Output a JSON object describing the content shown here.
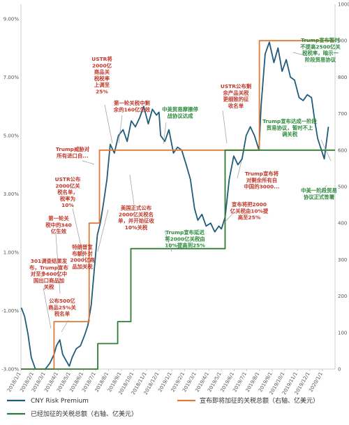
{
  "chart_data": {
    "type": "line",
    "title": "",
    "xlabel": "",
    "ylabel_left": "",
    "ylabel_right": "",
    "x_tick_labels": [
      "2018/1/1",
      "2018/2/1",
      "2018/3/1",
      "2018/4/1",
      "2018/5/1",
      "2018/6/1",
      "2018/7/1",
      "2018/8/1",
      "2018/9/1",
      "2018/10/1",
      "2018/11/1",
      "2018/12/1",
      "2019/1/1",
      "2019/2/1",
      "2019/3/1",
      "2019/4/1",
      "2019/5/1",
      "2019/6/1",
      "2019/7/1",
      "2019/8/1",
      "2019/9/1",
      "2019/10/1",
      "2019/11/1",
      "2019/12/1",
      "2020/1/1"
    ],
    "x_range": [
      "2018/1/1",
      "2020/1/31"
    ],
    "y_left": {
      "ticks": [
        "-3.00%",
        "-1.00%",
        "1.00%",
        "3.00%",
        "5.00%",
        "7.00%",
        "9.00%"
      ],
      "range": [
        -3.0,
        9.5
      ],
      "unit": "%"
    },
    "y_right": {
      "ticks": [
        "0",
        "100",
        "200",
        "300",
        "400",
        "500",
        "600",
        "700",
        "800",
        "900",
        "1000"
      ],
      "range": [
        0,
        1000
      ],
      "unit": "亿美元"
    },
    "grid": false,
    "legend_position": "bottom",
    "colors": {
      "premium": "#1f5b7a",
      "announced": "#e07a3a",
      "imposed": "#2e7d32",
      "annotation_red": "#c0392b",
      "annotation_green": "#2e8b3d",
      "axis": "#cccccc"
    },
    "series": [
      {
        "name": "CNY Risk Premium",
        "axis": "left",
        "points": [
          [
            "2018/1/2",
            -0.9
          ],
          [
            "2018/1/10",
            -1.2
          ],
          [
            "2018/1/18",
            -1.8
          ],
          [
            "2018/1/26",
            -2.6
          ],
          [
            "2018/2/5",
            -3.0
          ],
          [
            "2018/2/20",
            -3.0
          ],
          [
            "2018/3/1",
            -3.0
          ],
          [
            "2018/3/12",
            -2.8
          ],
          [
            "2018/3/22",
            -2.5
          ],
          [
            "2018/3/28",
            -2.2
          ],
          [
            "2018/4/5",
            -2.0
          ],
          [
            "2018/4/12",
            -2.5
          ],
          [
            "2018/4/20",
            -2.7
          ],
          [
            "2018/4/28",
            -2.9
          ],
          [
            "2018/5/5",
            -2.6
          ],
          [
            "2018/5/15",
            -2.3
          ],
          [
            "2018/5/25",
            -2.2
          ],
          [
            "2018/6/5",
            -1.8
          ],
          [
            "2018/6/12",
            -1.5
          ],
          [
            "2018/6/20",
            -0.8
          ],
          [
            "2018/6/28",
            0.5
          ],
          [
            "2018/7/5",
            1.6
          ],
          [
            "2018/7/12",
            2.0
          ],
          [
            "2018/7/20",
            2.7
          ],
          [
            "2018/7/28",
            3.5
          ],
          [
            "2018/8/5",
            4.7
          ],
          [
            "2018/8/15",
            4.4
          ],
          [
            "2018/8/25",
            5.0
          ],
          [
            "2018/9/5",
            5.2
          ],
          [
            "2018/9/15",
            4.8
          ],
          [
            "2018/9/25",
            5.5
          ],
          [
            "2018/10/5",
            5.3
          ],
          [
            "2018/10/15",
            5.6
          ],
          [
            "2018/10/25",
            6.0
          ],
          [
            "2018/11/5",
            5.4
          ],
          [
            "2018/11/15",
            5.9
          ],
          [
            "2018/11/25",
            5.7
          ],
          [
            "2018/12/1",
            5.8
          ],
          [
            "2018/12/5",
            5.0
          ],
          [
            "2018/12/15",
            4.8
          ],
          [
            "2018/12/25",
            5.2
          ],
          [
            "2019/1/5",
            4.4
          ],
          [
            "2019/1/15",
            4.6
          ],
          [
            "2019/1/25",
            4.5
          ],
          [
            "2019/2/5",
            4.0
          ],
          [
            "2019/2/15",
            3.5
          ],
          [
            "2019/2/25",
            2.5
          ],
          [
            "2019/3/5",
            2.1
          ],
          [
            "2019/3/15",
            2.3
          ],
          [
            "2019/3/25",
            1.9
          ],
          [
            "2019/4/5",
            2.0
          ],
          [
            "2019/4/15",
            1.7
          ],
          [
            "2019/4/25",
            1.9
          ],
          [
            "2019/5/1",
            1.8
          ],
          [
            "2019/5/10",
            2.2
          ],
          [
            "2019/5/20",
            3.5
          ],
          [
            "2019/5/31",
            4.3
          ],
          [
            "2019/6/10",
            4.0
          ],
          [
            "2019/6/20",
            4.2
          ],
          [
            "2019/6/30",
            5.0
          ],
          [
            "2019/7/10",
            5.3
          ],
          [
            "2019/7/20",
            5.0
          ],
          [
            "2019/7/31",
            4.5
          ],
          [
            "2019/8/5",
            6.0
          ],
          [
            "2019/8/15",
            7.8
          ],
          [
            "2019/8/25",
            8.2
          ],
          [
            "2019/9/5",
            7.5
          ],
          [
            "2019/9/15",
            8.0
          ],
          [
            "2019/9/25",
            7.2
          ],
          [
            "2019/10/5",
            7.6
          ],
          [
            "2019/10/15",
            7.0
          ],
          [
            "2019/10/25",
            6.9
          ],
          [
            "2019/11/5",
            6.3
          ],
          [
            "2019/11/15",
            6.2
          ],
          [
            "2019/11/25",
            6.4
          ],
          [
            "2019/12/5",
            6.3
          ],
          [
            "2019/12/13",
            5.5
          ],
          [
            "2019/12/20",
            4.9
          ],
          [
            "2020/1/5",
            4.2
          ],
          [
            "2020/1/15",
            5.3
          ]
        ]
      },
      {
        "name": "宣布即将加征的关税总额（右轴、亿美元）",
        "axis": "right",
        "points": [
          [
            "2018/1/1",
            0
          ],
          [
            "2018/3/22",
            0
          ],
          [
            "2018/3/22",
            130
          ],
          [
            "2018/6/15",
            130
          ],
          [
            "2018/6/15",
            400
          ],
          [
            "2018/7/10",
            400
          ],
          [
            "2018/7/10",
            600
          ],
          [
            "2019/8/1",
            600
          ],
          [
            "2019/8/1",
            900
          ],
          [
            "2020/1/31",
            900
          ]
        ]
      },
      {
        "name": "已经加征的关税总额（右轴、亿美元）",
        "axis": "right",
        "points": [
          [
            "2018/1/1",
            0
          ],
          [
            "2018/7/6",
            0
          ],
          [
            "2018/7/6",
            70
          ],
          [
            "2018/8/23",
            70
          ],
          [
            "2018/8/23",
            130
          ],
          [
            "2018/9/24",
            130
          ],
          [
            "2018/9/24",
            330
          ],
          [
            "2019/5/10",
            330
          ],
          [
            "2019/5/10",
            600
          ],
          [
            "2020/1/31",
            600
          ]
        ]
      }
    ]
  },
  "annotations": {
    "a1": "301调查结果发布，Trump宣布对至多600亿中国出口商品加关税",
    "a2": "公布500亿商品25%关税名单",
    "a3": "第一轮关税中的340亿生效",
    "a4": "USTR公布2000亿关税名单，税率为10%",
    "a5": "Trump威胁对所有进口自...",
    "a6": "USTR将2000亿商品关税税率上调至25%",
    "a7": "第一轮关税中剩余的160亿生效",
    "a8": "中美贸易摩擦停战协议达成",
    "a9": "特朗普宣布额外对2000亿商品加关税",
    "a10": "美国正式公布2000亿关税名单，并开始征收10%关税",
    "a11": "Trump宣布延迟将2000亿关税由10%提高到25%",
    "a12": "宣布将把2000亿关税由10%提高至25%",
    "a13": "USTR公布剩余产品关税更细致的征收名单",
    "a14": "Trump宣布将对剩余所有自中国的3000...",
    "a15": "Trump宣布暂时不提高2500亿关税税率，暗示一阶段贸易协议",
    "a16": "Trump宣布达成一阶段贸易协议，暂时不上调关税",
    "a17": "中美一阶段贸易协议正式签署"
  }
}
